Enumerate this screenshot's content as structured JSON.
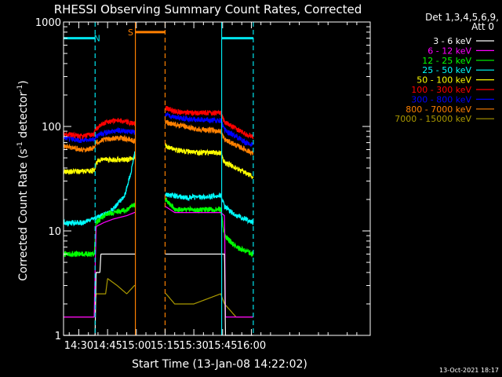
{
  "chart_data": {
    "type": "line",
    "title": "RHESSI Observing Summary Count Rates, Corrected",
    "xlabel": "Start Time (13-Jan-08 14:22:02)",
    "ylabel_main": "Corrected Count Rate (s",
    "ylabel_sup1": "-1",
    "ylabel_mid": " detector",
    "ylabel_sup2": "-1",
    "ylabel_end": ")",
    "x_range_min": [
      22.03,
      182
    ],
    "yscale": "log",
    "ylim": [
      1,
      1000
    ],
    "x_ticks": [
      {
        "min": 30,
        "label": "14:30"
      },
      {
        "min": 45,
        "label": "14:45"
      },
      {
        "min": 60,
        "label": "15:00"
      },
      {
        "min": 75,
        "label": "15:15"
      },
      {
        "min": 90,
        "label": "15:30"
      },
      {
        "min": 105,
        "label": "15:45"
      },
      {
        "min": 120,
        "label": "16:00"
      }
    ],
    "y_ticks": [
      {
        "value": 1,
        "label": "1"
      },
      {
        "value": 10,
        "label": "10"
      },
      {
        "value": 100,
        "label": "100"
      },
      {
        "value": 1000,
        "label": "1000"
      }
    ],
    "legend_header": [
      "Det 1,3,4,5,6,9,",
      "Att 0"
    ],
    "legend_position": "right",
    "gaps_min": [
      [
        59.5,
        75
      ]
    ],
    "series": [
      {
        "name": "3 - 6 keV",
        "color": "#ffffff",
        "points": [
          [
            22,
            1
          ],
          [
            38.5,
            1
          ],
          [
            39,
            4
          ],
          [
            41,
            4
          ],
          [
            41.5,
            6
          ],
          [
            58,
            6
          ],
          [
            59,
            6
          ],
          [
            75.5,
            6
          ],
          [
            76.5,
            6
          ],
          [
            106,
            6
          ],
          [
            106.5,
            1
          ],
          [
            121,
            1
          ]
        ]
      },
      {
        "name": "6 - 12 keV",
        "color": "#ff00ff",
        "points": [
          [
            22,
            1.5
          ],
          [
            38,
            1.5
          ],
          [
            39,
            11
          ],
          [
            43,
            12
          ],
          [
            48,
            13
          ],
          [
            55,
            14
          ],
          [
            59,
            15
          ],
          [
            75.5,
            17
          ],
          [
            80,
            15
          ],
          [
            90,
            15
          ],
          [
            104,
            15
          ],
          [
            106,
            14
          ],
          [
            106.5,
            1.5
          ],
          [
            121,
            1.5
          ]
        ]
      },
      {
        "name": "12 - 25 keV",
        "color": "#00ff00",
        "points": [
          [
            22,
            6
          ],
          [
            38,
            6
          ],
          [
            39,
            12
          ],
          [
            43,
            14
          ],
          [
            48,
            15
          ],
          [
            55,
            16
          ],
          [
            59,
            18
          ],
          [
            75.5,
            20
          ],
          [
            80,
            16
          ],
          [
            90,
            16
          ],
          [
            104,
            16
          ],
          [
            106,
            9
          ],
          [
            112,
            7
          ],
          [
            121,
            6
          ]
        ]
      },
      {
        "name": "25 - 50 keV",
        "color": "#00ffff",
        "points": [
          [
            22,
            12
          ],
          [
            32,
            12
          ],
          [
            38,
            13
          ],
          [
            42,
            14
          ],
          [
            46,
            15
          ],
          [
            50,
            18
          ],
          [
            54,
            22
          ],
          [
            57,
            35
          ],
          [
            59,
            55
          ],
          [
            75.5,
            22
          ],
          [
            78,
            22
          ],
          [
            85,
            21
          ],
          [
            95,
            21
          ],
          [
            104,
            22
          ],
          [
            106,
            17
          ],
          [
            112,
            14
          ],
          [
            117,
            13
          ],
          [
            121,
            12
          ]
        ]
      },
      {
        "name": "50 - 100 keV",
        "color": "#ffff00",
        "points": [
          [
            22,
            37
          ],
          [
            32,
            37
          ],
          [
            38,
            38
          ],
          [
            39,
            45
          ],
          [
            42,
            48
          ],
          [
            50,
            48
          ],
          [
            55,
            48
          ],
          [
            59,
            50
          ],
          [
            75.5,
            65
          ],
          [
            80,
            60
          ],
          [
            90,
            56
          ],
          [
            104,
            56
          ],
          [
            106,
            45
          ],
          [
            112,
            40
          ],
          [
            118,
            35
          ],
          [
            121,
            33
          ]
        ]
      },
      {
        "name": "100 - 300 keV",
        "color": "#ff0000",
        "points": [
          [
            22,
            85
          ],
          [
            32,
            80
          ],
          [
            38,
            85
          ],
          [
            39,
            95
          ],
          [
            44,
            110
          ],
          [
            50,
            115
          ],
          [
            55,
            110
          ],
          [
            59,
            105
          ],
          [
            75.5,
            150
          ],
          [
            80,
            140
          ],
          [
            90,
            135
          ],
          [
            104,
            135
          ],
          [
            106,
            110
          ],
          [
            112,
            95
          ],
          [
            117,
            85
          ],
          [
            121,
            80
          ]
        ]
      },
      {
        "name": "300 - 800 keV",
        "color": "#0000ff",
        "points": [
          [
            22,
            78
          ],
          [
            32,
            73
          ],
          [
            38,
            76
          ],
          [
            39,
            80
          ],
          [
            44,
            88
          ],
          [
            50,
            92
          ],
          [
            55,
            90
          ],
          [
            59,
            88
          ],
          [
            75.5,
            130
          ],
          [
            80,
            122
          ],
          [
            90,
            116
          ],
          [
            104,
            114
          ],
          [
            106,
            92
          ],
          [
            112,
            80
          ],
          [
            117,
            70
          ],
          [
            121,
            66
          ]
        ]
      },
      {
        "name": "800 - 7000 keV",
        "color": "#ff8000",
        "points": [
          [
            22,
            65
          ],
          [
            32,
            60
          ],
          [
            38,
            62
          ],
          [
            39,
            70
          ],
          [
            44,
            75
          ],
          [
            50,
            78
          ],
          [
            55,
            76
          ],
          [
            59,
            72
          ],
          [
            75.5,
            110
          ],
          [
            80,
            105
          ],
          [
            90,
            95
          ],
          [
            104,
            90
          ],
          [
            106,
            75
          ],
          [
            112,
            66
          ],
          [
            117,
            60
          ],
          [
            121,
            55
          ]
        ]
      },
      {
        "name": "7000 - 15000 keV",
        "color": "#aa9900",
        "points": [
          [
            22,
            1.5
          ],
          [
            38,
            1.5
          ],
          [
            39,
            2.5
          ],
          [
            44,
            2.5
          ],
          [
            45,
            3.5
          ],
          [
            50,
            3
          ],
          [
            55,
            2.5
          ],
          [
            59,
            3
          ],
          [
            75.5,
            2.5
          ],
          [
            80,
            2
          ],
          [
            90,
            2
          ],
          [
            104,
            2.5
          ],
          [
            106,
            2
          ],
          [
            112,
            1.5
          ],
          [
            121,
            1.5
          ]
        ]
      }
    ],
    "intervals": [
      {
        "label": "N",
        "color": "#00e5ee",
        "value": 700,
        "segments": [
          [
            22.03,
            38.5
          ],
          [
            104.5,
            121
          ]
        ],
        "label_at": 39.5
      },
      {
        "label": "S",
        "color": "#ff8000",
        "value": 800,
        "segments": [
          [
            59.5,
            75
          ]
        ],
        "label_at": 57
      }
    ],
    "vlines": [
      {
        "min": 38.5,
        "color": "#00e5ee",
        "dashed": true
      },
      {
        "min": 104.5,
        "color": "#00e5ee",
        "dashed": false
      },
      {
        "min": 121,
        "color": "#00e5ee",
        "dashed": true
      },
      {
        "min": 59.5,
        "color": "#ff8000",
        "dashed": false
      },
      {
        "min": 75,
        "color": "#ff8000",
        "dashed": true
      }
    ]
  },
  "footer_date": "13-Oct-2021 18:17"
}
